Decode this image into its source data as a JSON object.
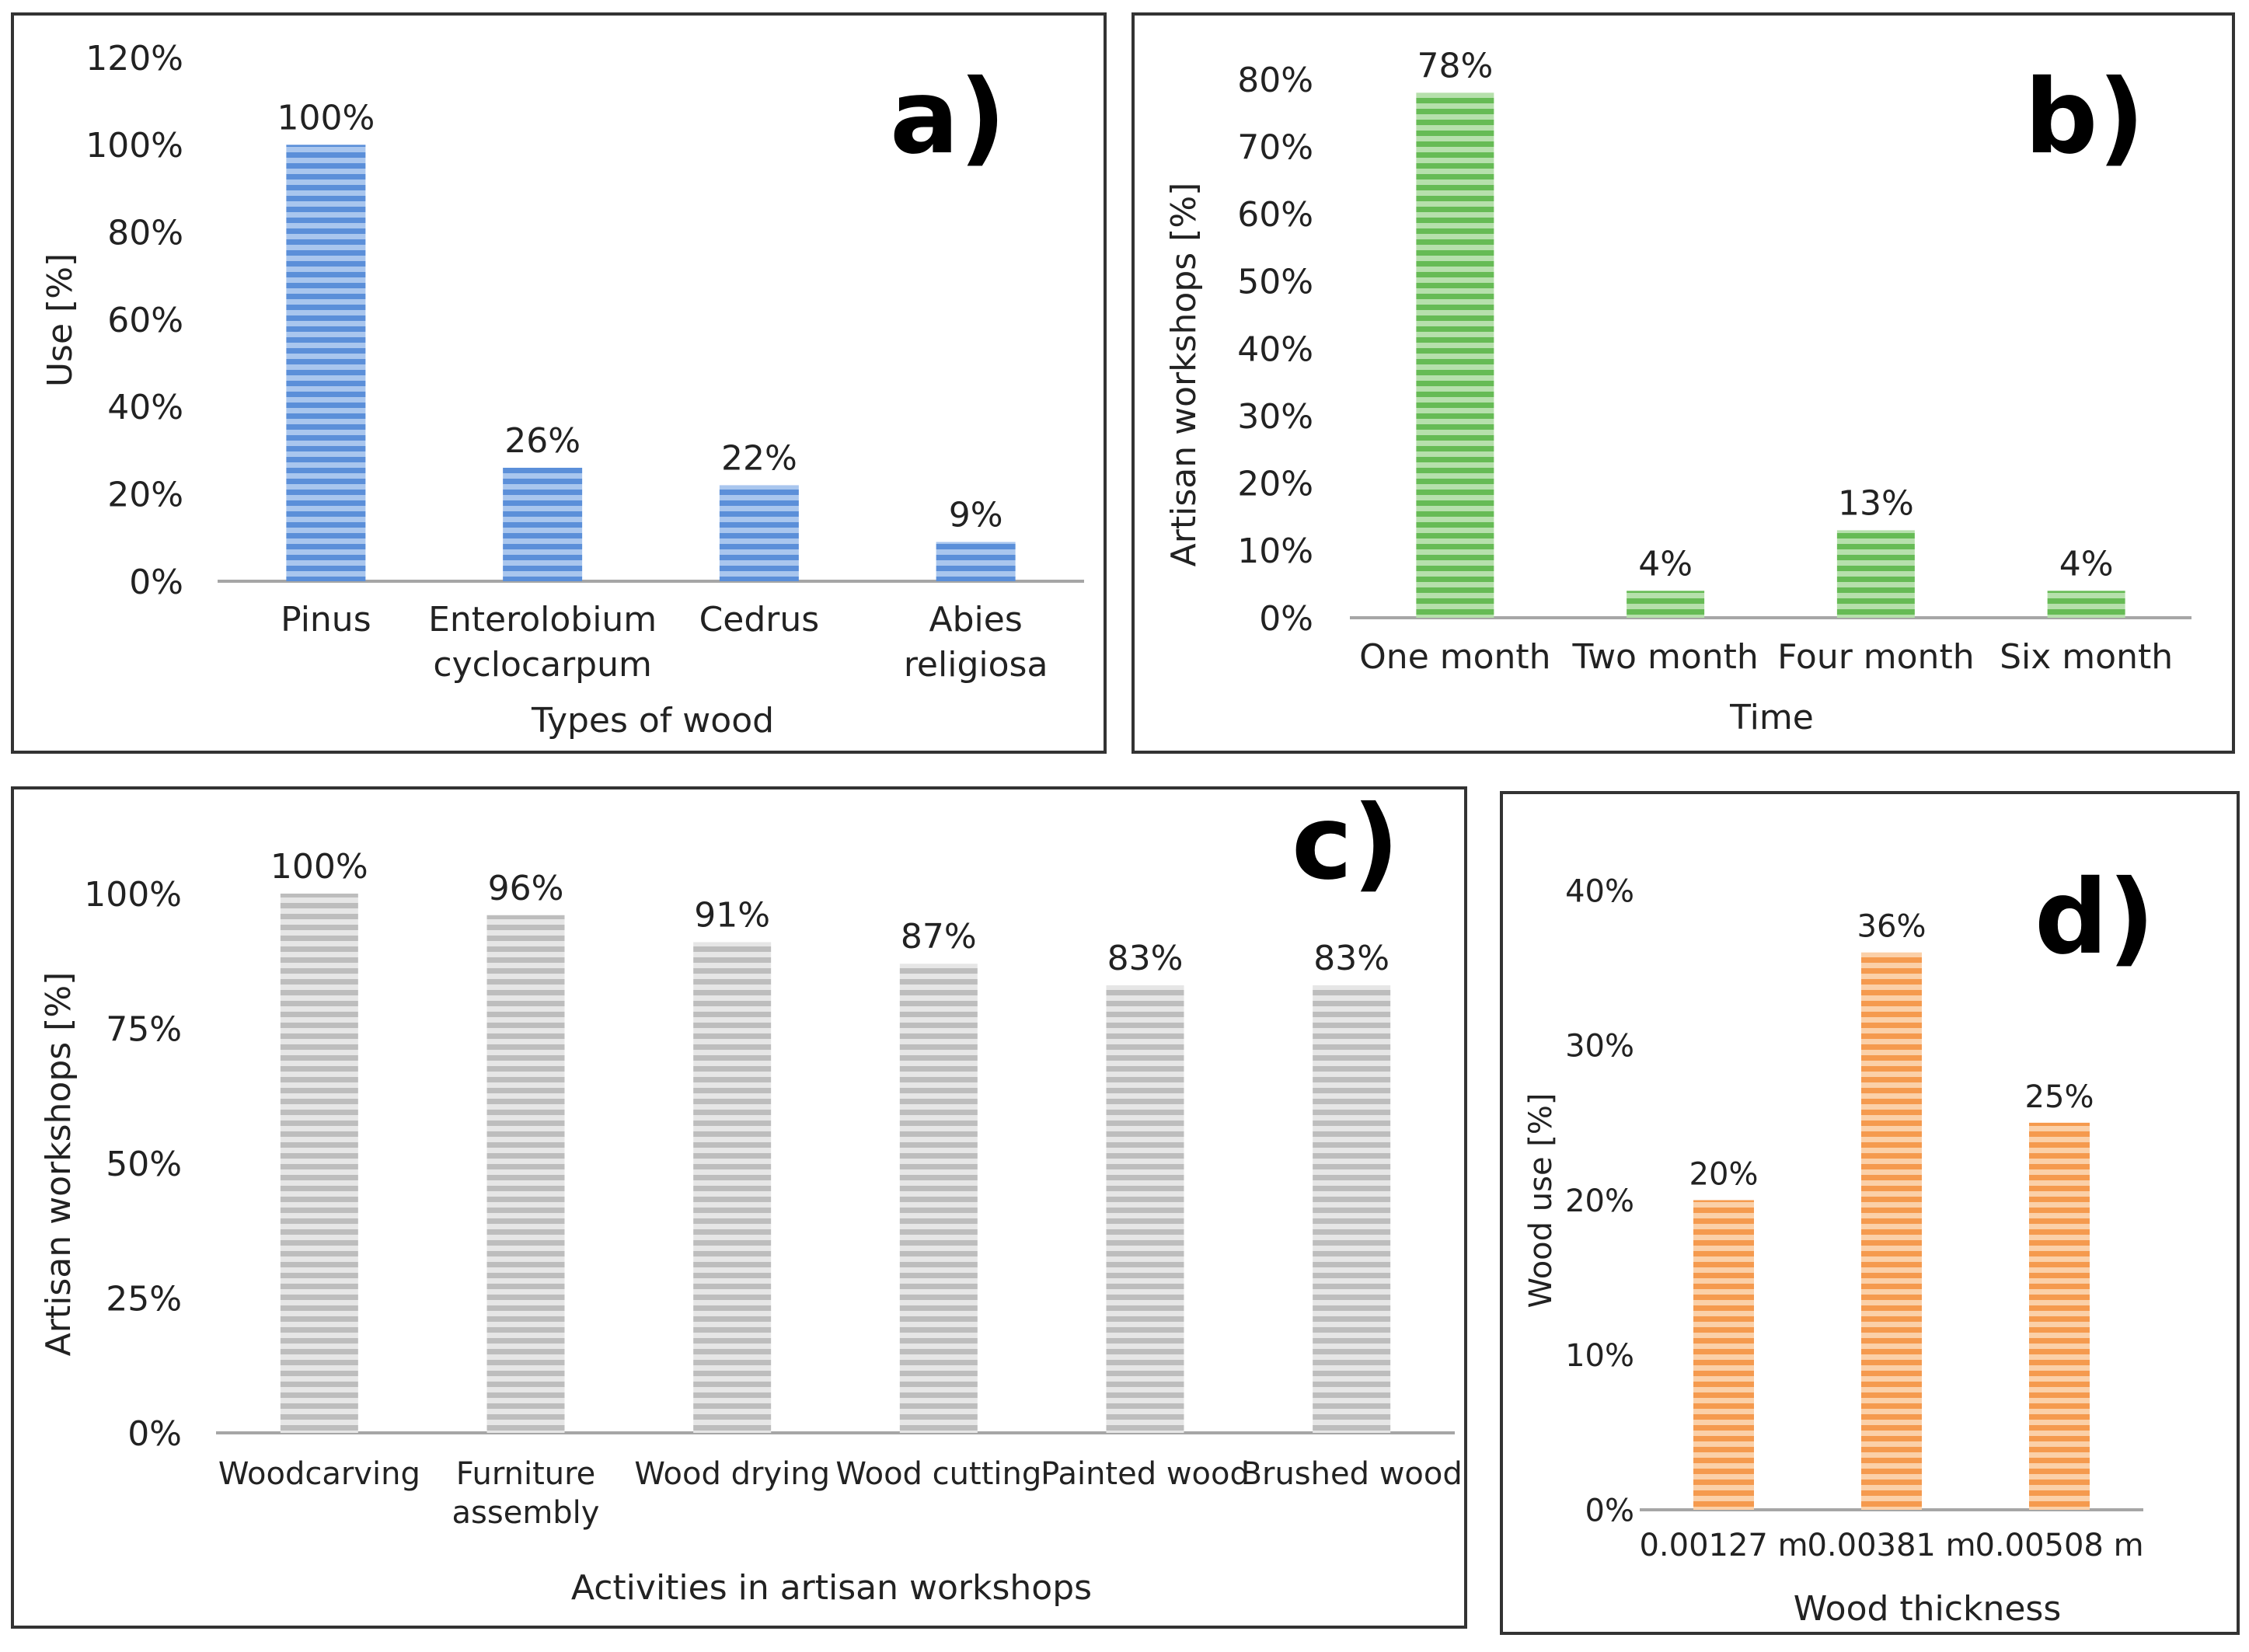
{
  "chart_data": [
    {
      "id": "a",
      "type": "bar",
      "panel_label": "a)",
      "title": "",
      "categories": [
        [
          "Pinus"
        ],
        [
          "Enterolobium",
          "cyclocarpum"
        ],
        [
          "Cedrus"
        ],
        [
          "Abies",
          "religiosa"
        ]
      ],
      "values": [
        100,
        26,
        22,
        9
      ],
      "data_labels": [
        "100%",
        "26%",
        "22%",
        "9%"
      ],
      "ticks": [
        "0%",
        "20%",
        "40%",
        "60%",
        "80%",
        "100%",
        "120%"
      ],
      "ylim": [
        0,
        120
      ],
      "xlabel": "Types of wood",
      "ylabel": "Use [%]",
      "color": "#5b8fd9",
      "stripe_color": "#a9c6ee",
      "grid": false
    },
    {
      "id": "b",
      "type": "bar",
      "panel_label": "b)",
      "title": "",
      "categories": [
        [
          "One month"
        ],
        [
          "Two month"
        ],
        [
          "Four month"
        ],
        [
          "Six month"
        ]
      ],
      "values": [
        78,
        4,
        13,
        4
      ],
      "data_labels": [
        "78%",
        "4%",
        "13%",
        "4%"
      ],
      "ticks": [
        "0%",
        "10%",
        "20%",
        "30%",
        "40%",
        "50%",
        "60%",
        "70%",
        "80%"
      ],
      "ylim": [
        0,
        80
      ],
      "xlabel": "Time",
      "ylabel": "Artisan workshops [%]",
      "color": "#66bb55",
      "stripe_color": "#b6e0ac",
      "grid": false
    },
    {
      "id": "c",
      "type": "bar",
      "panel_label": "c)",
      "title": "",
      "categories": [
        [
          "Woodcarving"
        ],
        [
          "Furniture",
          "assembly"
        ],
        [
          "Wood drying"
        ],
        [
          "Wood cutting"
        ],
        [
          "Painted wood"
        ],
        [
          "Brushed wood"
        ]
      ],
      "values": [
        100,
        96,
        91,
        87,
        83,
        83
      ],
      "data_labels": [
        "100%",
        "96%",
        "91%",
        "87%",
        "83%",
        "83%"
      ],
      "ticks": [
        "0%",
        "25%",
        "50%",
        "75%",
        "100%"
      ],
      "ylim": [
        0,
        100
      ],
      "xlabel": "Activities in artisan workshops",
      "ylabel": "Artisan workshops [%]",
      "color": "#bdbdbd",
      "stripe_color": "#e6e6e6",
      "grid": false
    },
    {
      "id": "d",
      "type": "bar",
      "panel_label": "d)",
      "title": "",
      "categories": [
        [
          "0.00127 m"
        ],
        [
          "0.00381 m"
        ],
        [
          "0.00508 m"
        ]
      ],
      "values": [
        20,
        36,
        25
      ],
      "data_labels": [
        "20%",
        "36%",
        "25%"
      ],
      "ticks": [
        "0%",
        "10%",
        "20%",
        "30%",
        "40%"
      ],
      "ylim": [
        0,
        40
      ],
      "xlabel": "Wood thickness",
      "ylabel": "Wood use [%]",
      "color": "#f59a4e",
      "stripe_color": "#fbd0a8",
      "grid": false
    }
  ]
}
